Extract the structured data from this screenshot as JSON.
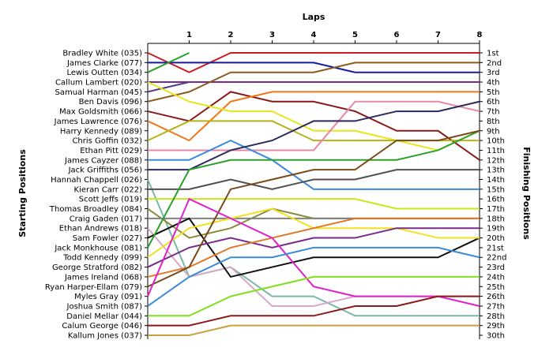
{
  "chart_data": {
    "type": "line",
    "title": "Laps",
    "xlabel": "Laps",
    "ylabel_left": "Starting Positions",
    "ylabel_right": "Finishing Positions",
    "x": [
      0,
      1,
      2,
      3,
      4,
      5,
      6,
      7,
      8
    ],
    "x_tick_labels": [
      "1",
      "2",
      "3",
      "4",
      "5",
      "6",
      "7",
      "8"
    ],
    "ylim": [
      1,
      30
    ],
    "y_inverted": true,
    "grid": false,
    "finishing_labels": [
      "1st",
      "2nd",
      "3rd",
      "4th",
      "5th",
      "6th",
      "7th",
      "8th",
      "9th",
      "10th",
      "11th",
      "12th",
      "13th",
      "14th",
      "15th",
      "16th",
      "17th",
      "18th",
      "19th",
      "20th",
      "21st",
      "22nd",
      "23rd",
      "24th",
      "25th",
      "26th",
      "27th",
      "28th",
      "29th",
      "30th"
    ],
    "series": [
      {
        "name": "Bradley White (035)",
        "color": "#c81e24",
        "values": [
          1,
          3,
          1,
          1,
          1,
          1,
          1,
          1,
          1
        ]
      },
      {
        "name": "James Clarke (077)",
        "color": "#1a1a9c",
        "values": [
          2,
          2,
          2,
          2,
          2,
          3,
          3,
          3,
          3
        ]
      },
      {
        "name": "Lewis Outten (034)",
        "color": "#2ca02c",
        "values": [
          3,
          1,
          null,
          null,
          null,
          null,
          null,
          null,
          null
        ]
      },
      {
        "name": "Callum Lambert (020)",
        "color": "#7a2a8a",
        "values": [
          4,
          4,
          4,
          4,
          4,
          4,
          4,
          4,
          4
        ]
      },
      {
        "name": "Samual Harman (045)",
        "color": "#5a3a8c",
        "values": [
          5,
          4,
          null,
          null,
          null,
          null,
          null,
          null,
          null
        ]
      },
      {
        "name": "Ben Davis (096)",
        "color": "#8c5a1a",
        "values": [
          6,
          5,
          3,
          3,
          3,
          2,
          2,
          2,
          2
        ]
      },
      {
        "name": "Max Goldsmith (066)",
        "color": "#8b1a1a",
        "values": [
          7,
          8,
          5,
          6,
          6,
          7,
          9,
          9,
          12
        ]
      },
      {
        "name": "James Lawrence (076)",
        "color": "#f07818",
        "values": [
          8,
          10,
          6,
          5,
          5,
          5,
          5,
          5,
          5
        ]
      },
      {
        "name": "Harry Kennedy (089)",
        "color": "#e6e618",
        "values": [
          4,
          6,
          7,
          7,
          9,
          9,
          10,
          11,
          9
        ]
      },
      {
        "name": "Chris Goffin (032)",
        "color": "#b4b418",
        "values": [
          10,
          8,
          8,
          8,
          10,
          10,
          10,
          10,
          10
        ]
      },
      {
        "name": "Ethan Pitt (029)",
        "color": "#e888a8",
        "values": [
          11,
          11,
          11,
          11,
          11,
          6,
          6,
          6,
          7
        ]
      },
      {
        "name": "James Cayzer (088)",
        "color": "#3a8ade",
        "values": [
          12,
          12,
          10,
          12,
          15,
          15,
          15,
          15,
          15
        ]
      },
      {
        "name": "Jack Griffiths (056)",
        "color": "#2a2a5c",
        "values": [
          13,
          13,
          11,
          10,
          8,
          8,
          7,
          7,
          6
        ]
      },
      {
        "name": "Hannah Chappell (026)",
        "color": "#7ab8a8",
        "values": [
          14,
          24,
          23,
          26,
          26,
          28,
          28,
          28,
          28
        ]
      },
      {
        "name": "Kieran Carr (022)",
        "color": "#505050",
        "values": [
          15,
          15,
          14,
          15,
          14,
          14,
          13,
          13,
          13
        ]
      },
      {
        "name": "Scott Jeffs (019)",
        "color": "#c8e818",
        "values": [
          16,
          16,
          16,
          16,
          16,
          16,
          17,
          17,
          17
        ]
      },
      {
        "name": "Thomas Broadley (084)",
        "color": "#8a8a3a",
        "values": [
          17,
          20,
          19,
          17,
          18,
          18,
          18,
          18,
          18
        ]
      },
      {
        "name": "Craig Gaden (017)",
        "color": "#808080",
        "values": [
          18,
          18,
          18,
          18,
          18,
          18,
          18,
          18,
          18
        ]
      },
      {
        "name": "Ethan Andrews (018)",
        "color": "#d8a8c8",
        "values": [
          19,
          24,
          23,
          27,
          27,
          26,
          26,
          26,
          26
        ]
      },
      {
        "name": "Sam Fowler (027)",
        "color": "#101010",
        "values": [
          20,
          18,
          24,
          23,
          22,
          22,
          22,
          22,
          20
        ]
      },
      {
        "name": "Jack Monkhouse (081)",
        "color": "#2ca02c",
        "values": [
          21,
          13,
          12,
          12,
          12,
          12,
          12,
          11,
          9
        ]
      },
      {
        "name": "Todd Kennedy (099)",
        "color": "#f0e020",
        "values": [
          22,
          19,
          18,
          17,
          19,
          19,
          19,
          20,
          20
        ]
      },
      {
        "name": "George Stratford (082)",
        "color": "#7a2a8a",
        "values": [
          23,
          21,
          20,
          21,
          20,
          20,
          19,
          19,
          19
        ]
      },
      {
        "name": "James Ireland (068)",
        "color": "#e07828",
        "values": [
          24,
          23,
          21,
          20,
          19,
          18,
          18,
          18,
          18
        ]
      },
      {
        "name": "Ryan Harper-Ellam (079)",
        "color": "#7a4a1a",
        "values": [
          25,
          23,
          15,
          14,
          13,
          13,
          10,
          10,
          9
        ]
      },
      {
        "name": "Myles Gray (091)",
        "color": "#e020c8",
        "values": [
          26,
          16,
          18,
          20,
          25,
          26,
          26,
          26,
          27
        ]
      },
      {
        "name": "Joshua Smith (087)",
        "color": "#3a8ade",
        "values": [
          27,
          24,
          22,
          22,
          21,
          21,
          21,
          21,
          22
        ]
      },
      {
        "name": "Daniel Mellar (044)",
        "color": "#80e020",
        "values": [
          28,
          28,
          26,
          25,
          24,
          24,
          24,
          24,
          24
        ]
      },
      {
        "name": "Calum George (046)",
        "color": "#8b1a1a",
        "values": [
          29,
          29,
          28,
          28,
          28,
          27,
          27,
          26,
          26
        ]
      },
      {
        "name": "Kallum Jones (037)",
        "color": "#c8a040",
        "values": [
          30,
          30,
          29,
          29,
          29,
          29,
          29,
          29,
          29
        ]
      }
    ]
  }
}
